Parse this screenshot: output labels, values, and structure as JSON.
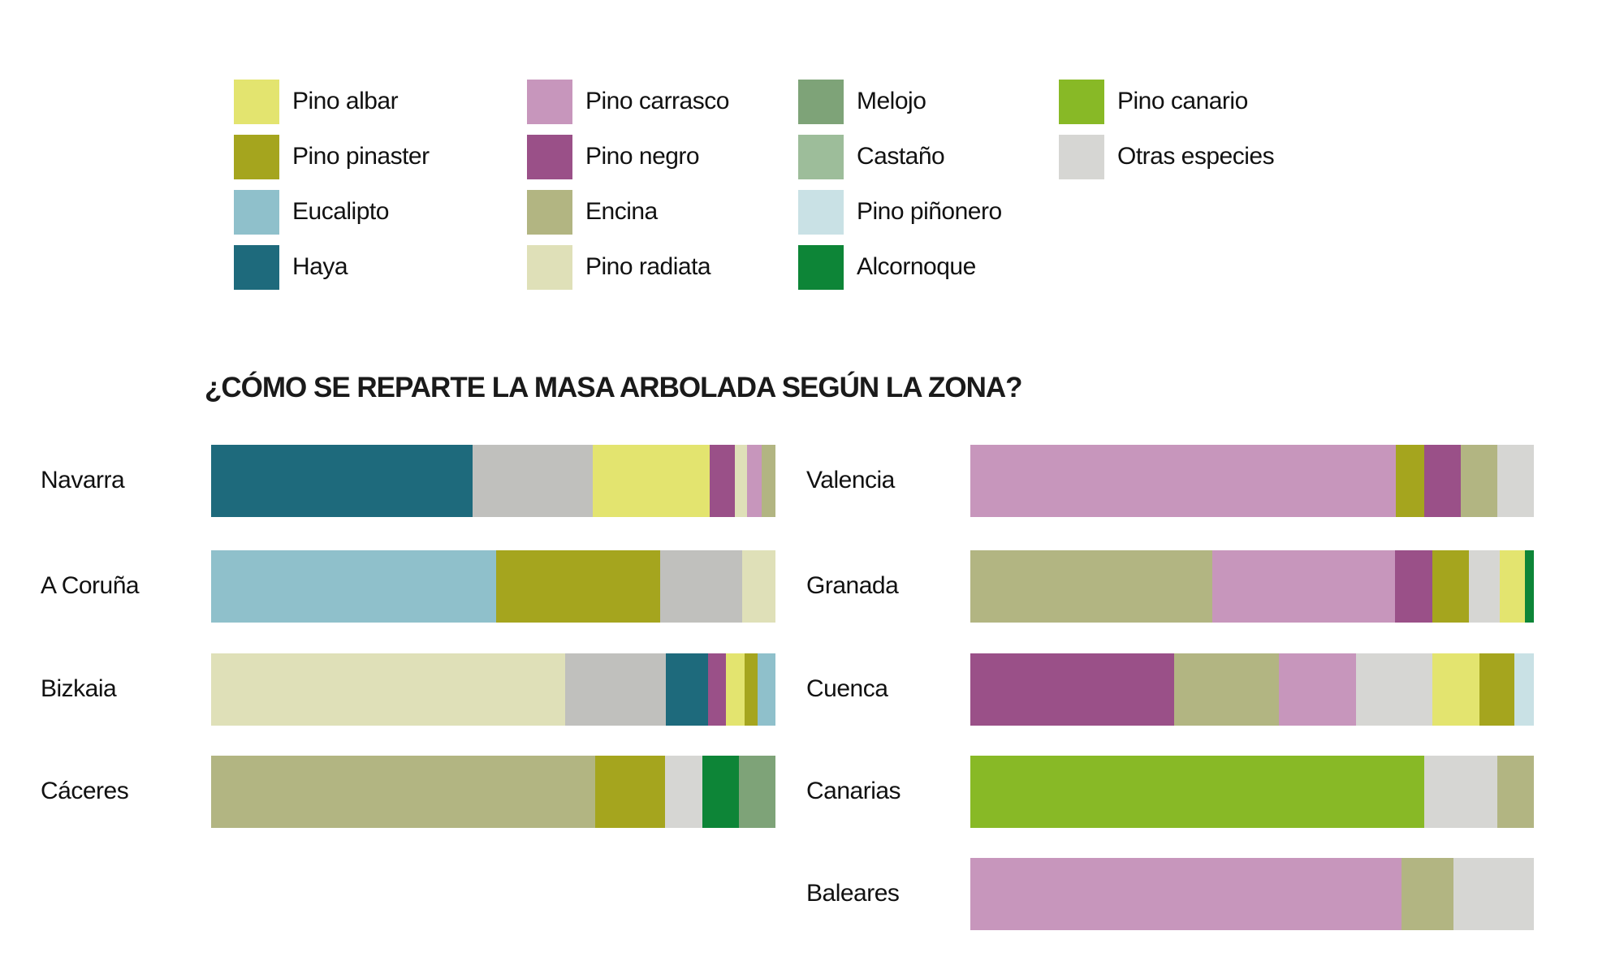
{
  "legend": [
    {
      "label": "Pino albar",
      "color": "#e3e46f"
    },
    {
      "label": "Pino pinaster",
      "color": "#a5a51e"
    },
    {
      "label": "Eucalipto",
      "color": "#8fc0cb"
    },
    {
      "label": "Haya",
      "color": "#1e6a7c"
    },
    {
      "label": "Pino carrasco",
      "color": "#c796bc"
    },
    {
      "label": "Pino negro",
      "color": "#9a5088"
    },
    {
      "label": "Encina",
      "color": "#b2b582"
    },
    {
      "label": "Pino radiata",
      "color": "#dfe0b8"
    },
    {
      "label": "Melojo",
      "color": "#7ea378"
    },
    {
      "label": "Castaño",
      "color": "#9dbd9a"
    },
    {
      "label": "Pino piñonero",
      "color": "#c9e1e5"
    },
    {
      "label": "Alcornoque",
      "color": "#0d8537"
    },
    {
      "label": "Pino canario",
      "color": "#88b926"
    },
    {
      "label": "Otras especies",
      "color": "#d6d6d3"
    }
  ],
  "chart_data": {
    "type": "bar",
    "orientation": "horizontal",
    "stacked": true,
    "title": "¿CÓMO SE REPARTE LA MASA ARBOLADA SEGÚN LA ZONA?",
    "unit": "% of total (estimated)",
    "regions": [
      {
        "name": "Navarra",
        "segments": [
          {
            "species": "Haya",
            "value": 46.4,
            "color": "#1e6a7c"
          },
          {
            "species": "Otras especies",
            "value": 21.2,
            "color": "#c0c0bd"
          },
          {
            "species": "Pino albar",
            "value": 20.7,
            "color": "#e3e46f"
          },
          {
            "species": "Pino negro",
            "value": 4.5,
            "color": "#9a5088"
          },
          {
            "species": "Pino radiata",
            "value": 2.1,
            "color": "#dfe0b8"
          },
          {
            "species": "Pino carrasco",
            "value": 2.6,
            "color": "#c796bc"
          },
          {
            "species": "Encina",
            "value": 2.5,
            "color": "#b2b582"
          }
        ]
      },
      {
        "name": "A Coruña",
        "segments": [
          {
            "species": "Eucalipto",
            "value": 50.5,
            "color": "#8fc0cb"
          },
          {
            "species": "Pino pinaster",
            "value": 29.0,
            "color": "#a5a51e"
          },
          {
            "species": "Otras especies",
            "value": 14.6,
            "color": "#c0c0bd"
          },
          {
            "species": "Pino radiata",
            "value": 5.9,
            "color": "#dfe0b8"
          }
        ]
      },
      {
        "name": "Bizkaia",
        "segments": [
          {
            "species": "Pino radiata",
            "value": 62.8,
            "color": "#dfe0b8"
          },
          {
            "species": "Otras especies",
            "value": 17.8,
            "color": "#c0c0bd"
          },
          {
            "species": "Haya",
            "value": 7.4,
            "color": "#1e6a7c"
          },
          {
            "species": "Pino negro",
            "value": 3.2,
            "color": "#9a5088"
          },
          {
            "species": "Pino albar",
            "value": 3.3,
            "color": "#e3e46f"
          },
          {
            "species": "Pino pinaster",
            "value": 2.4,
            "color": "#a5a51e"
          },
          {
            "species": "Eucalipto",
            "value": 3.1,
            "color": "#8fc0cb"
          }
        ]
      },
      {
        "name": "Cáceres",
        "segments": [
          {
            "species": "Encina",
            "value": 68.0,
            "color": "#b2b582"
          },
          {
            "species": "Pino pinaster",
            "value": 12.5,
            "color": "#a5a51e"
          },
          {
            "species": "Otras especies",
            "value": 6.5,
            "color": "#d6d6d3"
          },
          {
            "species": "Alcornoque",
            "value": 6.5,
            "color": "#0d8537"
          },
          {
            "species": "Melojo",
            "value": 6.5,
            "color": "#7ea378"
          }
        ]
      },
      {
        "name": "Valencia",
        "segments": [
          {
            "species": "Pino carrasco",
            "value": 75.5,
            "color": "#c796bc"
          },
          {
            "species": "Pino pinaster",
            "value": 5.1,
            "color": "#a5a51e"
          },
          {
            "species": "Pino negro",
            "value": 6.5,
            "color": "#9a5088"
          },
          {
            "species": "Encina",
            "value": 6.4,
            "color": "#b2b582"
          },
          {
            "species": "Otras especies",
            "value": 6.5,
            "color": "#d6d6d3"
          }
        ]
      },
      {
        "name": "Granada",
        "segments": [
          {
            "species": "Encina",
            "value": 43.0,
            "color": "#b2b582"
          },
          {
            "species": "Pino carrasco",
            "value": 32.4,
            "color": "#c796bc"
          },
          {
            "species": "Pino negro",
            "value": 6.6,
            "color": "#9a5088"
          },
          {
            "species": "Pino pinaster",
            "value": 6.5,
            "color": "#a5a51e"
          },
          {
            "species": "Otras especies",
            "value": 5.4,
            "color": "#d6d6d3"
          },
          {
            "species": "Pino albar",
            "value": 4.5,
            "color": "#e3e46f"
          },
          {
            "species": "Alcornoque",
            "value": 1.6,
            "color": "#0d8537"
          }
        ]
      },
      {
        "name": "Cuenca",
        "segments": [
          {
            "species": "Pino negro",
            "value": 36.2,
            "color": "#9a5088"
          },
          {
            "species": "Encina",
            "value": 18.6,
            "color": "#b2b582"
          },
          {
            "species": "Pino carrasco",
            "value": 13.6,
            "color": "#c796bc"
          },
          {
            "species": "Otras especies",
            "value": 13.6,
            "color": "#d6d6d3"
          },
          {
            "species": "Pino albar",
            "value": 8.4,
            "color": "#e3e46f"
          },
          {
            "species": "Pino pinaster",
            "value": 6.2,
            "color": "#a5a51e"
          },
          {
            "species": "Pino piñonero",
            "value": 3.4,
            "color": "#c9e1e5"
          }
        ]
      },
      {
        "name": "Canarias",
        "segments": [
          {
            "species": "Pino canario",
            "value": 80.6,
            "color": "#88b926"
          },
          {
            "species": "Otras especies",
            "value": 12.9,
            "color": "#d6d6d3"
          },
          {
            "species": "Encina",
            "value": 6.5,
            "color": "#b2b582"
          }
        ]
      },
      {
        "name": "Baleares",
        "segments": [
          {
            "species": "Pino carrasco",
            "value": 76.5,
            "color": "#c796bc"
          },
          {
            "species": "Encina",
            "value": 9.2,
            "color": "#b2b582"
          },
          {
            "species": "Otras especies",
            "value": 14.3,
            "color": "#d6d6d3"
          }
        ]
      }
    ]
  }
}
